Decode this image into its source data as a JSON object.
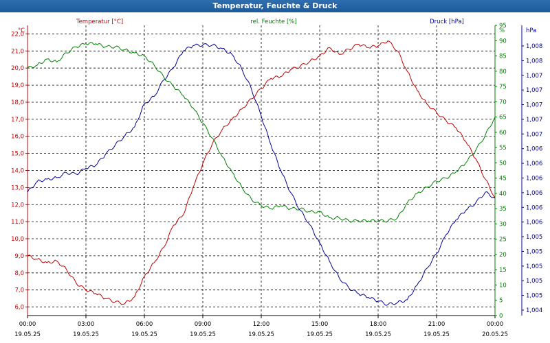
{
  "window": {
    "title": "Temperatur, Feuchte & Druck"
  },
  "chart_data": {
    "type": "line",
    "title": "Temperatur, Feuchte & Druck",
    "x_start": "2025-05-19 00:00",
    "x_end": "2025-05-20 00:00",
    "x_ticks": [
      {
        "time": "00:00",
        "date": "19.05.25"
      },
      {
        "time": "03:00",
        "date": "19.05.25"
      },
      {
        "time": "06:00",
        "date": "19.05.25"
      },
      {
        "time": "09:00",
        "date": "19.05.25"
      },
      {
        "time": "12:00",
        "date": "19.05.25"
      },
      {
        "time": "15:00",
        "date": "19.05.25"
      },
      {
        "time": "18:00",
        "date": "19.05.25"
      },
      {
        "time": "21:00",
        "date": "19.05.25"
      },
      {
        "time": "00:00",
        "date": "20.05.25"
      }
    ],
    "grid": true,
    "axes": {
      "temperature": {
        "label": "Temperatur [°C]",
        "unit": "°C",
        "range": [
          5.5,
          22.5
        ],
        "color": "#c00000",
        "ticks": [
          "6,0",
          "7,0",
          "8,0",
          "9,0",
          "10,0",
          "11,0",
          "12,0",
          "13,0",
          "14,0",
          "15,0",
          "16,0",
          "17,0",
          "18,0",
          "19,0",
          "20,0",
          "21,0",
          "22,0"
        ]
      },
      "humidity": {
        "label": "rel. Feuchte [%]",
        "unit": "%",
        "range": [
          0,
          95
        ],
        "color": "#008000",
        "ticks": [
          "0",
          "5",
          "10",
          "15",
          "20",
          "25",
          "30",
          "35",
          "40",
          "45",
          "50",
          "55",
          "60",
          "65",
          "70",
          "75",
          "80",
          "85",
          "90",
          "95"
        ]
      },
      "pressure": {
        "label": "Druck [hPa]",
        "unit": "hPa",
        "range": [
          1004.3,
          1008.3
        ],
        "color": "#000099",
        "ticks": [
          "1,004",
          "1,005",
          "1,005",
          "1,005",
          "1,005",
          "1,005",
          "1,006",
          "1,006",
          "1,006",
          "1,006",
          "1,006",
          "1,006",
          "1,007",
          "1,007",
          "1,007",
          "1,007",
          "1,007",
          "1,008",
          "1,008"
        ]
      }
    },
    "series": [
      {
        "name": "Temperatur",
        "axis": "temperature",
        "color": "#c00000",
        "x_hours": [
          0,
          0.5,
          1,
          1.5,
          2,
          2.5,
          3,
          3.5,
          4,
          4.5,
          5,
          5.5,
          6,
          6.5,
          7,
          7.5,
          8,
          8.5,
          9,
          9.5,
          10,
          10.5,
          11,
          11.5,
          12,
          12.5,
          13,
          13.5,
          14,
          14.5,
          15,
          15.5,
          16,
          16.5,
          17,
          17.5,
          18,
          18.5,
          19,
          19.5,
          20,
          20.5,
          21,
          21.5,
          22,
          22.5,
          23,
          23.5,
          24
        ],
        "values": [
          9.0,
          8.8,
          8.6,
          8.7,
          8.2,
          7.4,
          7.0,
          6.8,
          6.5,
          6.3,
          6.2,
          6.6,
          7.8,
          8.6,
          9.5,
          10.8,
          11.4,
          13.0,
          14.4,
          15.6,
          16.4,
          17.0,
          17.6,
          18.2,
          18.8,
          19.4,
          19.5,
          19.9,
          20.1,
          20.4,
          20.7,
          21.2,
          20.8,
          21.1,
          21.4,
          21.2,
          21.3,
          21.6,
          21.0,
          19.8,
          18.7,
          17.9,
          17.4,
          16.9,
          16.5,
          15.7,
          14.7,
          13.5,
          12.4
        ]
      },
      {
        "name": "rel. Feuchte",
        "axis": "humidity",
        "color": "#008000",
        "x_hours": [
          0,
          0.5,
          1,
          1.5,
          2,
          2.5,
          3,
          3.5,
          4,
          4.5,
          5,
          5.5,
          6,
          6.5,
          7,
          7.5,
          8,
          8.5,
          9,
          9.5,
          10,
          10.5,
          11,
          11.5,
          12,
          12.5,
          13,
          13.5,
          14,
          14.5,
          15,
          15.5,
          16,
          16.5,
          17,
          17.5,
          18,
          18.5,
          19,
          19.5,
          20,
          20.5,
          21,
          21.5,
          22,
          22.5,
          23,
          23.5,
          24
        ],
        "values": [
          81,
          82,
          84,
          83,
          86,
          88,
          89,
          89,
          88,
          88,
          87,
          86,
          85,
          82,
          78,
          75,
          72,
          68,
          63,
          58,
          52,
          47,
          42,
          38,
          36,
          35,
          36,
          35,
          35,
          34,
          34,
          32,
          32,
          31,
          31,
          31,
          31,
          31,
          32,
          37,
          40,
          42,
          44,
          45,
          47,
          50,
          54,
          59,
          65
        ]
      },
      {
        "name": "Druck",
        "axis": "pressure",
        "color": "#000099",
        "x_hours": [
          0,
          0.5,
          1,
          1.5,
          2,
          2.5,
          3,
          3.5,
          4,
          4.5,
          5,
          5.5,
          6,
          6.5,
          7,
          7.5,
          8,
          8.5,
          9,
          9.5,
          10,
          10.5,
          11,
          11.5,
          12,
          12.5,
          13,
          13.5,
          14,
          14.5,
          15,
          15.5,
          16,
          16.5,
          17,
          17.5,
          18,
          18.5,
          19,
          19.5,
          20,
          20.5,
          21,
          21.5,
          22,
          22.5,
          23,
          23.5,
          24
        ],
        "values": [
          1006.0,
          1006.15,
          1006.18,
          1006.2,
          1006.27,
          1006.25,
          1006.33,
          1006.37,
          1006.52,
          1006.65,
          1006.78,
          1006.9,
          1007.22,
          1007.32,
          1007.55,
          1007.72,
          1007.95,
          1008.02,
          1008.03,
          1008.03,
          1007.98,
          1007.9,
          1007.7,
          1007.42,
          1007.05,
          1006.65,
          1006.3,
          1006.0,
          1005.75,
          1005.55,
          1005.3,
          1005.05,
          1004.82,
          1004.68,
          1004.6,
          1004.55,
          1004.5,
          1004.45,
          1004.48,
          1004.52,
          1004.72,
          1004.95,
          1005.15,
          1005.42,
          1005.62,
          1005.75,
          1005.85,
          1006.0,
          1005.92
        ]
      }
    ]
  }
}
